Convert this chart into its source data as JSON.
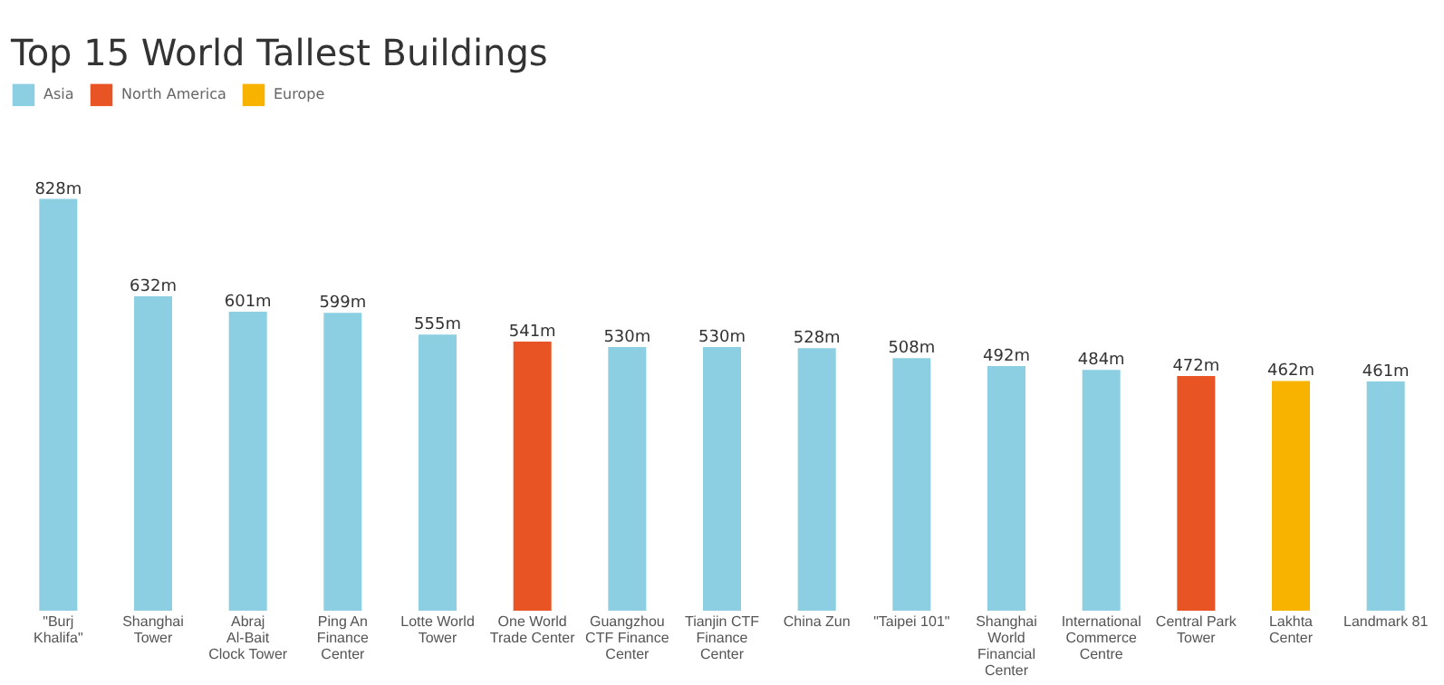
{
  "chart_data": {
    "type": "bar",
    "title": "Top 15 World Tallest Buildings",
    "categories": [
      "\"Burj Khalifa\"",
      "Shanghai Tower",
      "Abraj Al-Bait Clock Tower",
      "Ping An Finance Center",
      "Lotte World Tower",
      "One World Trade Center",
      "Guangzhou CTF Finance Center",
      "Tianjin CTF Finance Center",
      "China Zun",
      "\"Taipei 101\"",
      "Shanghai World Financial Center",
      "International Commerce Centre",
      "Central Park Tower",
      "Lakhta Center",
      "Landmark 81"
    ],
    "series": [
      {
        "name": "Asia",
        "color": "#8ccfe2",
        "values": [
          828,
          632,
          601,
          599,
          555,
          null,
          530,
          530,
          528,
          508,
          492,
          484,
          null,
          null,
          461
        ],
        "value_labels": [
          "828m",
          "632m",
          "601m",
          "599m",
          "555m",
          null,
          "530m",
          "530m",
          "528m",
          "508m",
          "492m",
          "484m",
          null,
          null,
          "461m"
        ]
      },
      {
        "name": "North America",
        "color": "#e85424",
        "values": [
          null,
          null,
          null,
          null,
          null,
          541,
          null,
          null,
          null,
          null,
          null,
          null,
          472,
          null,
          null
        ],
        "value_labels": [
          null,
          null,
          null,
          null,
          null,
          "541m",
          null,
          null,
          null,
          null,
          null,
          null,
          "472m",
          null,
          null
        ]
      },
      {
        "name": "Europe",
        "color": "#f8b300",
        "values": [
          null,
          null,
          null,
          null,
          null,
          null,
          null,
          null,
          null,
          null,
          null,
          null,
          null,
          462,
          null
        ],
        "value_labels": [
          null,
          null,
          null,
          null,
          null,
          null,
          null,
          null,
          null,
          null,
          null,
          null,
          null,
          "462m",
          null
        ]
      }
    ],
    "tick_labels": "x",
    "grid": false,
    "legend": "top left"
  }
}
